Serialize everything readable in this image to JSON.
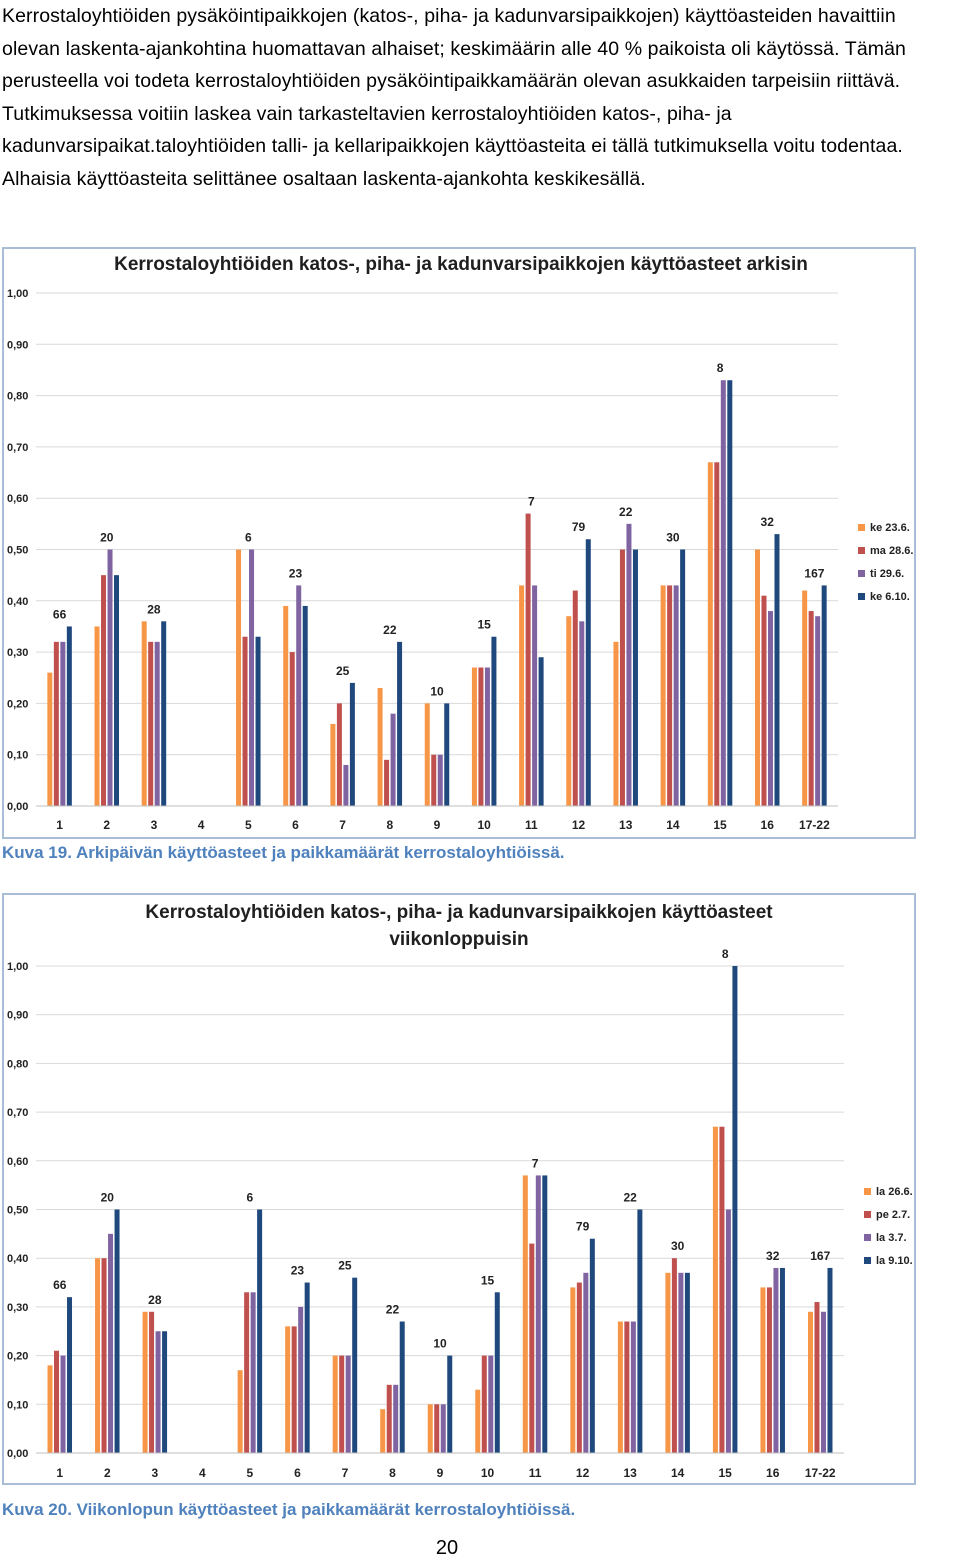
{
  "intro_text": "Kerrostaloyhtiöiden pysäköintipaikkojen (katos-, piha- ja kadunvarsipaikkojen) käyttöasteiden havaittiin olevan laskenta-ajankohtina huomattavan alhaiset; keskimäärin alle 40 % paikoista oli käytössä. Tämän perusteella voi todeta kerrostaloyhtiöiden pysäköintipaikkamäärän olevan asukkaiden tarpeisiin riittävä. Tutkimuksessa voitiin laskea vain tarkasteltavien kerrostaloyhtiöiden katos-, piha- ja kadunvarsipaikat.taloyhtiöiden talli- ja kellaripaikkojen käyttöasteita ei tällä tutkimuksella voitu todentaa. Alhaisia käyttöasteita selittänee osaltaan laskenta-ajankohta keskikesällä.",
  "captions": {
    "fig19": "Kuva 19. Arkipäivän käyttöasteet ja paikkamäärät kerrostaloyhtiöissä.",
    "fig20": "Kuva 20. Viikonlopun käyttöasteet ja paikkamäärät kerrostaloyhtiöissä."
  },
  "page_number": "20",
  "colors": {
    "orange": "#f79646",
    "red": "#c0504d",
    "purple": "#8064a2",
    "navy": "#1f497d",
    "grid": "#d9d9d9"
  },
  "chart_data": [
    {
      "type": "bar",
      "title_lines": [
        "Kerrostaloyhtiöiden katos-, piha- ja kadunvarsipaikkojen käyttöasteet arkisin"
      ],
      "xlabel": "",
      "ylabel": "",
      "ylim": [
        0,
        1
      ],
      "yticks": [
        "0,00",
        "0,10",
        "0,20",
        "0,30",
        "0,40",
        "0,50",
        "0,60",
        "0,70",
        "0,80",
        "0,90",
        "1,00"
      ],
      "categories": [
        "1",
        "2",
        "3",
        "4",
        "5",
        "6",
        "7",
        "8",
        "9",
        "10",
        "11",
        "12",
        "13",
        "14",
        "15",
        "16",
        "17-22"
      ],
      "spot_counts": [
        "66",
        "20",
        "28",
        "",
        "6",
        "23",
        "25",
        "22",
        "10",
        "15",
        "7",
        "79",
        "22",
        "30",
        "8",
        "32",
        "167"
      ],
      "series": [
        {
          "name": "ke 23.6.",
          "color": "#f79646",
          "values": [
            0.26,
            0.35,
            0.36,
            null,
            0.5,
            0.39,
            0.16,
            0.23,
            0.2,
            0.27,
            0.43,
            0.37,
            0.32,
            0.43,
            0.67,
            0.5,
            0.42
          ]
        },
        {
          "name": "ma 28.6.",
          "color": "#c0504d",
          "values": [
            0.32,
            0.45,
            0.32,
            null,
            0.33,
            0.3,
            0.2,
            0.09,
            0.1,
            0.27,
            0.57,
            0.42,
            0.5,
            0.43,
            0.67,
            0.41,
            0.38
          ]
        },
        {
          "name": "ti 29.6.",
          "color": "#8064a2",
          "values": [
            0.32,
            0.5,
            0.32,
            null,
            0.5,
            0.43,
            0.08,
            0.18,
            0.1,
            0.27,
            0.43,
            0.36,
            0.55,
            0.43,
            0.83,
            0.38,
            0.37
          ]
        },
        {
          "name": "ke 6.10.",
          "color": "#1f497d",
          "values": [
            0.35,
            0.45,
            0.36,
            null,
            0.33,
            0.39,
            0.24,
            0.32,
            0.2,
            0.33,
            0.29,
            0.52,
            0.5,
            0.5,
            0.83,
            0.53,
            0.43
          ]
        }
      ]
    },
    {
      "type": "bar",
      "title_lines": [
        "Kerrostaloyhtiöiden katos-, piha- ja kadunvarsipaikkojen käyttöasteet",
        "viikonloppuisin"
      ],
      "xlabel": "",
      "ylabel": "",
      "ylim": [
        0,
        1
      ],
      "yticks": [
        "0,00",
        "0,10",
        "0,20",
        "0,30",
        "0,40",
        "0,50",
        "0,60",
        "0,70",
        "0,80",
        "0,90",
        "1,00"
      ],
      "categories": [
        "1",
        "2",
        "3",
        "4",
        "5",
        "6",
        "7",
        "8",
        "9",
        "10",
        "11",
        "12",
        "13",
        "14",
        "15",
        "16",
        "17-22"
      ],
      "spot_counts": [
        "66",
        "20",
        "28",
        "",
        "6",
        "23",
        "25",
        "22",
        "10",
        "15",
        "7",
        "79",
        "22",
        "30",
        "8",
        "32",
        "167"
      ],
      "series": [
        {
          "name": "la 26.6.",
          "color": "#f79646",
          "values": [
            0.18,
            0.4,
            0.29,
            null,
            0.17,
            0.26,
            0.2,
            0.09,
            0.1,
            0.13,
            0.57,
            0.34,
            0.27,
            0.37,
            0.67,
            0.34,
            0.29
          ]
        },
        {
          "name": "pe 2.7.",
          "color": "#c0504d",
          "values": [
            0.21,
            0.4,
            0.29,
            null,
            0.33,
            0.26,
            0.2,
            0.14,
            0.1,
            0.2,
            0.43,
            0.35,
            0.27,
            0.4,
            0.67,
            0.34,
            0.31
          ]
        },
        {
          "name": "la 3.7.",
          "color": "#8064a2",
          "values": [
            0.2,
            0.45,
            0.25,
            null,
            0.33,
            0.3,
            0.2,
            0.14,
            0.1,
            0.2,
            0.57,
            0.37,
            0.27,
            0.37,
            0.5,
            0.38,
            0.29
          ]
        },
        {
          "name": "la 9.10.",
          "color": "#1f497d",
          "values": [
            0.32,
            0.5,
            0.25,
            null,
            0.5,
            0.35,
            0.36,
            0.27,
            0.2,
            0.33,
            0.57,
            0.44,
            0.5,
            0.37,
            1.0,
            0.38,
            0.38
          ]
        }
      ]
    }
  ]
}
